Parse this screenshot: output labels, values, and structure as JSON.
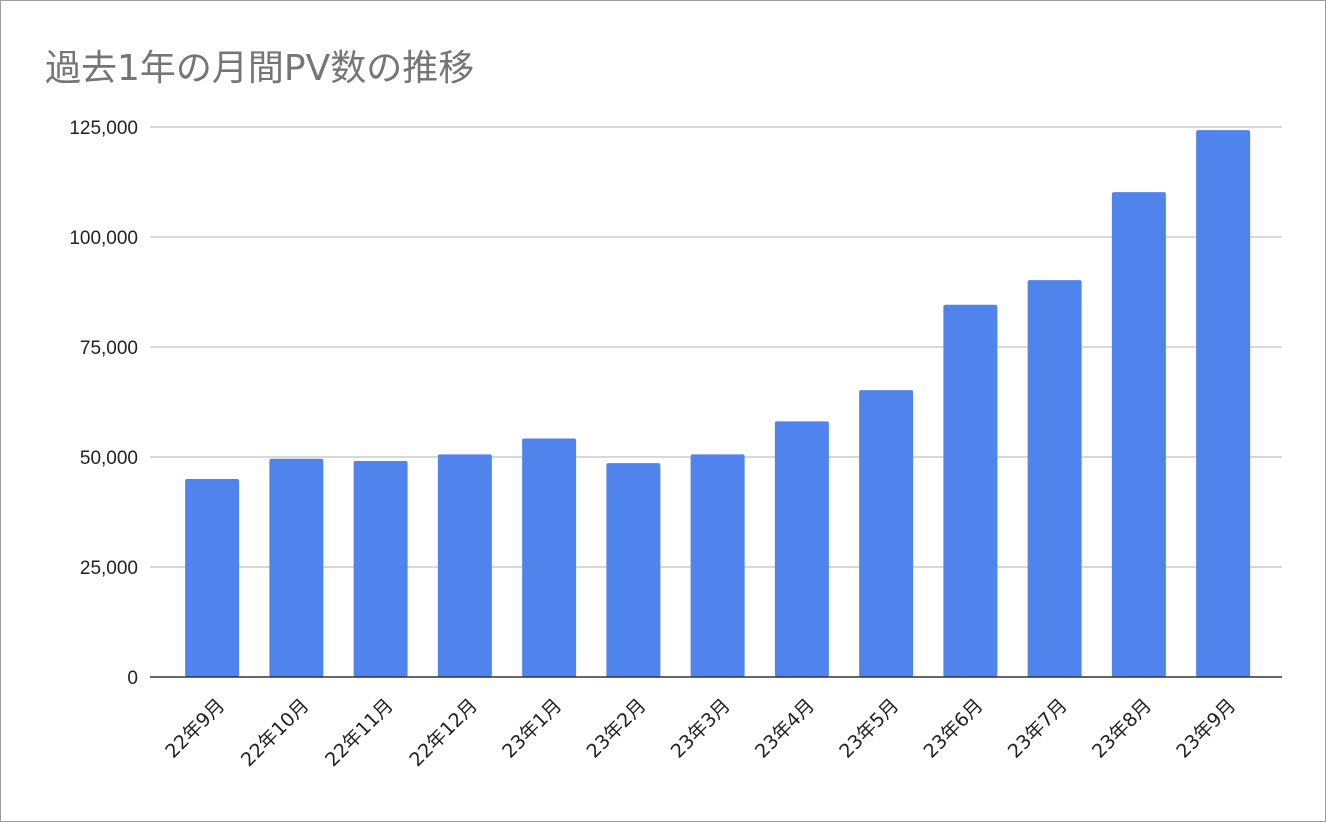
{
  "chart_data": {
    "type": "bar",
    "title": "過去1年の月間PV数の推移",
    "xlabel": "",
    "ylabel": "",
    "categories": [
      "22年9月",
      "22年10月",
      "22年11月",
      "22年12月",
      "23年1月",
      "23年2月",
      "23年3月",
      "23年4月",
      "23年5月",
      "23年6月",
      "23年7月",
      "23年8月",
      "23年9月"
    ],
    "series": [
      {
        "values": [
          45000,
          49600,
          49100,
          50600,
          54200,
          48600,
          50600,
          58100,
          65200,
          84600,
          90200,
          110200,
          124300
        ]
      }
    ],
    "ylim": [
      0,
      125000
    ],
    "yticks": [
      0,
      25000,
      50000,
      75000,
      100000,
      125000
    ],
    "ytick_labels": [
      "0",
      "25,000",
      "50,000",
      "75,000",
      "100,000",
      "125,000"
    ],
    "grid": true,
    "legend": "none",
    "colors": {
      "bar": "#5183ec",
      "grid": "#cccccc",
      "axis": "#333333",
      "title": "#757575",
      "text": "#222222"
    }
  }
}
